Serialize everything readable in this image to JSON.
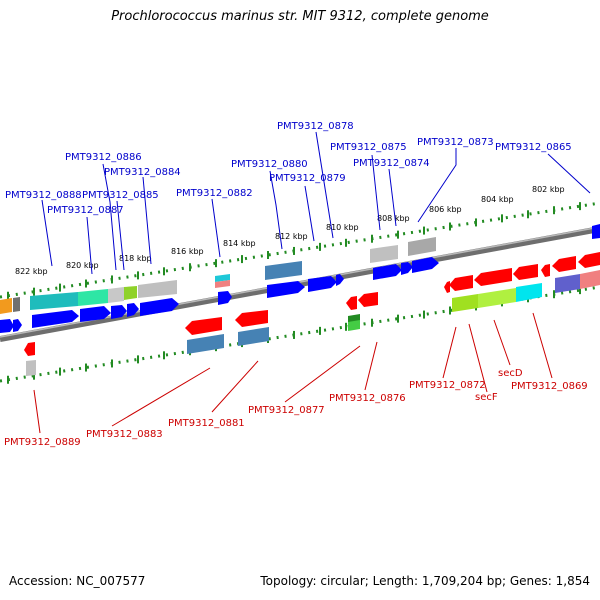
{
  "title": "Prochlorococcus marinus str. MIT 9312, complete genome",
  "footer": {
    "accession": "Accession: NC_007577",
    "topology": "Topology: circular; Length: 1,709,204 bp; Genes: 1,854"
  },
  "colors": {
    "forward_gene": "#0000ff",
    "reverse_gene": "#ff0000",
    "backbone": "#808080",
    "tick": "#228B22",
    "label_forward": "#0000cc",
    "label_reverse": "#cc0000"
  },
  "kbp_ticks": [
    "822 kbp",
    "820 kbp",
    "818 kbp",
    "816 kbp",
    "814 kbp",
    "812 kbp",
    "810 kbp",
    "808 kbp",
    "806 kbp",
    "804 kbp",
    "802 kbp"
  ],
  "labels_top": [
    "PMT9312_0888",
    "PMT9312_0887",
    "PMT9312_0886",
    "PMT9312_0885",
    "PMT9312_0884",
    "PMT9312_0882",
    "PMT9312_0880",
    "PMT9312_0879",
    "PMT9312_0878",
    "PMT9312_0875",
    "PMT9312_0874",
    "PMT9312_0873",
    "PMT9312_0865"
  ],
  "labels_bottom": [
    "PMT9312_0889",
    "PMT9312_0883",
    "PMT9312_0881",
    "PMT9312_0877",
    "PMT9312_0876",
    "PMT9312_0872",
    "secF",
    "secD",
    "PMT9312_0869"
  ]
}
